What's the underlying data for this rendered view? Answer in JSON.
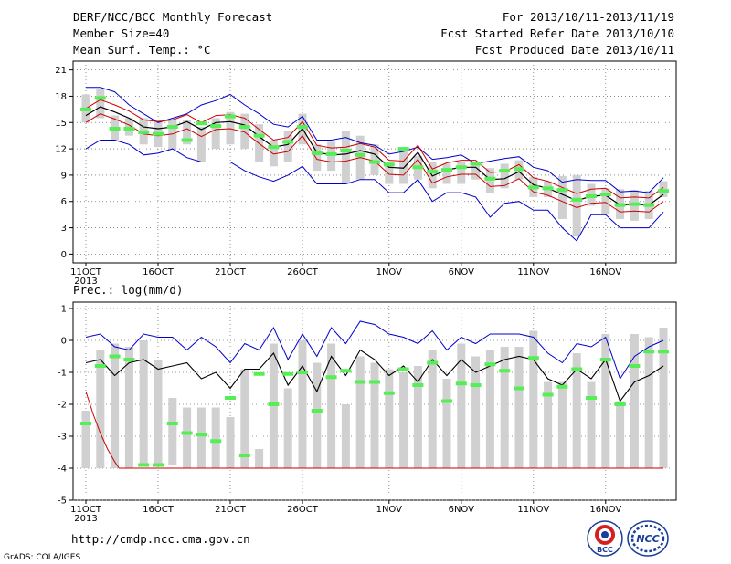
{
  "header": {
    "title": "DERF/NCC/BCC Monthly Forecast",
    "member_size": "Member Size=40",
    "variable1": "Mean Surf. Temp.: °C",
    "period": "For 2013/10/11-2013/11/19",
    "fcst_start": "Fcst Started Refer Date 2013/10/10",
    "fcst_produced": "Fcst Produced Date 2013/10/11"
  },
  "panel2_label": "Prec.: log(mm/d)",
  "footer": {
    "url": "http://cmdp.ncc.cma.gov.cn",
    "credit": "GrADS: COLA/IGES",
    "logo1_text": "BCC",
    "logo2_text": "NCC"
  },
  "colors": {
    "ensemble_max_min": "#0000cc",
    "spread": "#cc0000",
    "mean": "#000000",
    "member_box": "#d0d0d0",
    "median_marker": "#55ee55"
  },
  "chart_data": [
    {
      "type": "line",
      "name": "temperature",
      "ylabel": "Mean Surf. Temp.: °C",
      "ylim": [
        -1,
        22
      ],
      "yticks": [
        0,
        3,
        6,
        9,
        12,
        15,
        18,
        21
      ],
      "xticks": [
        {
          "day": 0,
          "label": "11OCT",
          "sub": "2013"
        },
        {
          "day": 5,
          "label": "16OCT"
        },
        {
          "day": 10,
          "label": "21OCT"
        },
        {
          "day": 15,
          "label": "26OCT"
        },
        {
          "day": 21,
          "label": "1NOV"
        },
        {
          "day": 26,
          "label": "6NOV"
        },
        {
          "day": 31,
          "label": "11NOV"
        },
        {
          "day": 36,
          "label": "16NOV"
        }
      ],
      "days": 40,
      "max": [
        19,
        19,
        18.5,
        17,
        16,
        15,
        15.5,
        16,
        17,
        17.5,
        18.2,
        17,
        16,
        14.8,
        14.5,
        15.7,
        13,
        13,
        13.3,
        12.7,
        12.4,
        11.4,
        11.7,
        12.2,
        10.8,
        11,
        11.3,
        10.3,
        10.6,
        10.9,
        11.1,
        9.9,
        9.5,
        8.2,
        8.5,
        8.4,
        8.4,
        7.1,
        7.2,
        7,
        8.7
      ],
      "min": [
        12,
        13,
        13,
        12.5,
        11.3,
        11.5,
        12,
        11,
        10.5,
        10.5,
        10.5,
        9.5,
        8.8,
        8.3,
        9,
        10,
        8,
        8,
        8,
        8.5,
        8.5,
        7,
        7,
        8.5,
        6,
        7,
        7,
        6.5,
        4.2,
        5.8,
        6,
        5,
        5,
        3,
        1.5,
        4.5,
        4.5,
        3,
        3,
        3,
        4.8
      ],
      "mean": [
        15.8,
        16.8,
        16.2,
        15.5,
        14.5,
        14.3,
        14.5,
        15.1,
        14.2,
        15,
        15.1,
        14.7,
        13.4,
        12.2,
        12.5,
        14.3,
        11.6,
        11.3,
        11.4,
        11.8,
        11.4,
        9.9,
        9.8,
        11.6,
        8.9,
        9.6,
        9.9,
        9.9,
        8.5,
        8.6,
        9.4,
        7.9,
        7.5,
        6.8,
        6.1,
        6.6,
        6.7,
        5.6,
        5.7,
        5.6,
        6.8
      ],
      "upper": [
        16.6,
        17.6,
        17,
        16.3,
        15.3,
        15.1,
        15.3,
        15.9,
        15,
        15.8,
        15.9,
        15.5,
        14.2,
        13,
        13.3,
        15.1,
        12.4,
        12.1,
        12.2,
        12.6,
        12.2,
        10.7,
        10.6,
        12.4,
        9.7,
        10.4,
        10.7,
        10.7,
        9.3,
        9.4,
        10.2,
        8.7,
        8.3,
        7.6,
        6.9,
        7.4,
        7.5,
        6.4,
        6.5,
        6.4,
        7.6
      ],
      "lower": [
        15,
        16,
        15.4,
        14.7,
        13.7,
        13.5,
        13.7,
        14.3,
        13.4,
        14.2,
        14.3,
        13.9,
        12.6,
        11.4,
        11.7,
        13.5,
        10.8,
        10.5,
        10.6,
        11,
        10.6,
        9.1,
        9,
        10.8,
        8.1,
        8.8,
        9.1,
        9.1,
        7.7,
        7.8,
        8.6,
        7.1,
        6.7,
        6,
        5.3,
        5.8,
        5.9,
        4.8,
        4.9,
        4.8,
        6
      ],
      "box_top": [
        18.2,
        18.8,
        15.8,
        15.5,
        15.5,
        15.3,
        15.4,
        15.3,
        14.5,
        15.5,
        16.2,
        16,
        14.8,
        13,
        14,
        16,
        12.5,
        12.8,
        14,
        13.5,
        12.5,
        10.5,
        12,
        11.2,
        10.5,
        10.3,
        10.5,
        10.5,
        9.8,
        10.3,
        10.7,
        8.8,
        8.3,
        8.9,
        9,
        8,
        7.5,
        7.4,
        7.3,
        7.2,
        8.3
      ],
      "box_bottom": [
        15,
        15.5,
        13,
        13.5,
        12.5,
        12.2,
        12,
        12.5,
        10.5,
        12,
        12.5,
        12,
        10.5,
        10,
        10.5,
        12.5,
        9.5,
        9.5,
        8,
        8.5,
        9,
        8,
        8,
        8.5,
        7.5,
        8,
        8,
        8.5,
        7,
        7.5,
        8.5,
        6.5,
        6.5,
        4,
        2,
        5.5,
        4.5,
        4,
        3.8,
        4,
        6.5
      ],
      "median": [
        16.5,
        17.8,
        14.3,
        14.3,
        13.9,
        13.7,
        14.5,
        13,
        14.9,
        14.6,
        15.7,
        14.5,
        13.5,
        12.2,
        12.8,
        14.5,
        11.5,
        11.4,
        11.8,
        11.3,
        10.5,
        10.2,
        12,
        9.9,
        9.4,
        9.6,
        9.9,
        10.3,
        8.6,
        9.5,
        9.7,
        7.6,
        7.5,
        7.3,
        6.2,
        6.6,
        6.8,
        5.6,
        5.7,
        5.6,
        7.2
      ]
    },
    {
      "type": "line",
      "name": "precipitation",
      "ylabel": "Prec.: log(mm/d)",
      "ylim": [
        -5,
        1.2
      ],
      "yticks": [
        -5,
        -4,
        -3,
        -2,
        -1,
        0,
        1
      ],
      "xticks": [
        {
          "day": 0,
          "label": "11OCT",
          "sub": "2013"
        },
        {
          "day": 5,
          "label": "16OCT"
        },
        {
          "day": 10,
          "label": "21OCT"
        },
        {
          "day": 15,
          "label": "26OCT"
        },
        {
          "day": 21,
          "label": "1NOV"
        },
        {
          "day": 26,
          "label": "6NOV"
        },
        {
          "day": 31,
          "label": "11NOV"
        },
        {
          "day": 36,
          "label": "16NOV"
        }
      ],
      "days": 40,
      "max": [
        0.1,
        0.2,
        -0.2,
        -0.3,
        0.2,
        0.1,
        0.1,
        -0.3,
        0.1,
        -0.2,
        -0.7,
        -0.1,
        -0.3,
        0.4,
        -0.6,
        0.2,
        -0.5,
        0.4,
        -0.1,
        0.6,
        0.5,
        0.2,
        0.1,
        -0.1,
        0.3,
        -0.3,
        0.1,
        -0.1,
        0.2,
        0.2,
        0.2,
        0.1,
        -0.4,
        -0.7,
        -0.1,
        -0.2,
        0.1,
        -1.2,
        -0.5,
        -0.2,
        0.0
      ],
      "mean": [
        -0.7,
        -0.6,
        -1.1,
        -0.7,
        -0.6,
        -0.9,
        -0.8,
        -0.7,
        -1.2,
        -1,
        -1.5,
        -0.9,
        -0.9,
        -0.4,
        -1.4,
        -0.8,
        -1.6,
        -0.5,
        -1.1,
        -0.3,
        -0.6,
        -1.1,
        -0.8,
        -1.3,
        -0.6,
        -1.1,
        -0.6,
        -1,
        -0.8,
        -0.6,
        -0.5,
        -0.6,
        -1.2,
        -1.4,
        -0.9,
        -1.2,
        -0.6,
        -1.9,
        -1.3,
        -1.1,
        -0.8
      ],
      "min_points": [
        [
          0,
          -1.6
        ],
        [
          0.5,
          -2.3
        ],
        [
          1,
          -2.9
        ],
        [
          1.5,
          -3.4
        ],
        [
          2,
          -3.8
        ],
        [
          2.3,
          -4.0
        ]
      ],
      "floor": -4,
      "box_top": [
        -2.2,
        -0.3,
        -0.1,
        -0.2,
        0.0,
        -0.6,
        -1.8,
        -2.1,
        -2.1,
        -2.1,
        -2.4,
        -0.9,
        -3.4,
        -0.1,
        -1.5,
        0.0,
        -0.7,
        -0.1,
        -2.0,
        -0.5,
        -0.7,
        -0.9,
        -1.0,
        -0.8,
        -0.3,
        -1.2,
        -0.1,
        -0.5,
        -0.3,
        -0.2,
        -0.2,
        0.3,
        -1.3,
        -1.3,
        -0.4,
        -1.3,
        0.2,
        -1.9,
        0.2,
        0.1,
        0.4
      ],
      "box_bottom": [
        -4,
        -4,
        -4,
        -4,
        -3.9,
        -3.9,
        -3.9,
        -4,
        -4,
        -4,
        -4,
        -4,
        -4,
        -4,
        -4,
        -4,
        -4,
        -4,
        -4,
        -4,
        -4,
        -4,
        -4,
        -4,
        -4,
        -4,
        -4,
        -4,
        -4,
        -4,
        -4,
        -4,
        -4,
        -4,
        -4,
        -4,
        -4,
        -4,
        -4,
        -4,
        -4
      ],
      "median": [
        -2.6,
        -0.8,
        -0.5,
        -0.6,
        -3.9,
        -3.9,
        -2.6,
        -2.9,
        -2.95,
        -3.15,
        -1.8,
        -3.6,
        -1.05,
        -2,
        -1.05,
        -1.0,
        -2.2,
        -1.15,
        -0.95,
        -1.3,
        -1.3,
        -1.65,
        -0.9,
        -1.4,
        -0.7,
        -1.9,
        -1.35,
        -1.4,
        -0.75,
        -0.95,
        -1.5,
        -0.55,
        -1.7,
        -1.45,
        -0.9,
        -1.8,
        -0.6,
        -2.0,
        -0.8,
        -0.35,
        -0.35
      ]
    }
  ]
}
